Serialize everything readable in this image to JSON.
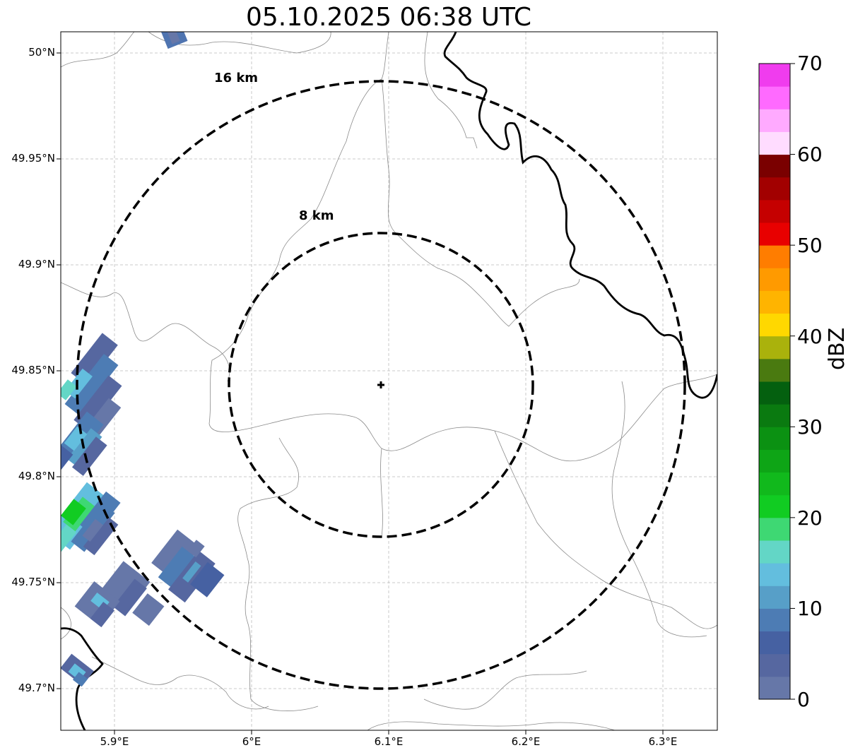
{
  "title": "05.10.2025 06:38 UTC",
  "lat_labels": [
    "50°N",
    "49.95°N",
    "49.9°N",
    "49.85°N",
    "49.8°N",
    "49.75°N",
    "49.7°N"
  ],
  "lon_labels": [
    "5.9°E",
    "6°E",
    "6.1°E",
    "6.2°E",
    "6.3°E"
  ],
  "range_rings": [
    {
      "label": "16 km",
      "radius_km": 16
    },
    {
      "label": "8 km",
      "radius_km": 8
    }
  ],
  "radar_site": {
    "lat": 49.843,
    "lon": 6.095
  },
  "colorbar": {
    "label": "dBZ",
    "ticks": [
      "0",
      "10",
      "20",
      "30",
      "40",
      "50",
      "60",
      "70"
    ],
    "colors": [
      "#6677a8",
      "#5667a0",
      "#4661a2",
      "#4d7cb4",
      "#579fc8",
      "#63bede",
      "#63d6c6",
      "#3ed873",
      "#11cc22",
      "#11b91c",
      "#0ea516",
      "#0b9112",
      "#0a7a10",
      "#04600f",
      "#4a7a10",
      "#aab20c",
      "#ffd800",
      "#ffb400",
      "#ff9a00",
      "#ff7d00",
      "#e80000",
      "#c50000",
      "#a20000",
      "#7a0000",
      "#ffdcff",
      "#ffaaff",
      "#ff6aff",
      "#f03cee"
    ]
  },
  "axes": {
    "lat_range": [
      49.68,
      50.01
    ],
    "lon_range": [
      5.86,
      6.34
    ],
    "grid": true
  }
}
